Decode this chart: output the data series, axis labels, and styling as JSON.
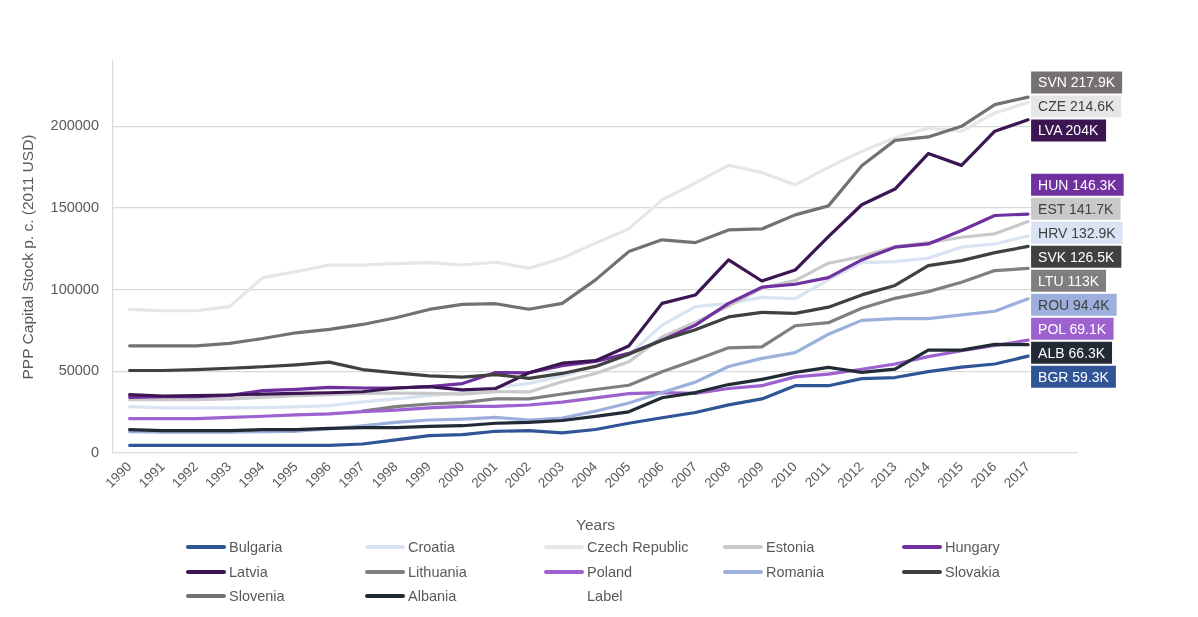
{
  "chart_data": {
    "type": "line",
    "xlabel": "Years",
    "ylabel": "PPP Capital Stock p. c. (2011 USD)",
    "categories": [
      "1990",
      "1991",
      "1992",
      "1993",
      "1994",
      "1995",
      "1996",
      "1997",
      "1998",
      "1999",
      "2000",
      "2001",
      "2002",
      "2003",
      "2004",
      "2005",
      "2006",
      "2007",
      "2008",
      "2009",
      "2010",
      "2011",
      "2012",
      "2013",
      "2014",
      "2015",
      "2016",
      "2017",
      null
    ],
    "ylim": [
      0,
      240000
    ],
    "yticks": [
      0,
      50000,
      100000,
      150000,
      200000
    ],
    "grid": "y",
    "legend": "bottom",
    "marker": "none",
    "line_style": "solid",
    "series": [
      {
        "name": "Bulgaria",
        "color": "#2f5597",
        "values": [
          4700,
          4700,
          4700,
          4700,
          4700,
          4700,
          4700,
          5500,
          8000,
          10600,
          11200,
          13300,
          13700,
          12300,
          14400,
          18200,
          21600,
          24800,
          29500,
          33100,
          41200,
          41200,
          45500,
          46200,
          49800,
          52600,
          54500,
          59300,
          null
        ],
        "value_labels": [
          null,
          null,
          null,
          null,
          null,
          null,
          null,
          null,
          null,
          null,
          null,
          null,
          null,
          null,
          null,
          null,
          null,
          null,
          null,
          null,
          null,
          null,
          null,
          null,
          null,
          null,
          null,
          "BGR 59.3K",
          null
        ]
      },
      {
        "name": "Croatia",
        "color": "#dae3f3",
        "values": [
          28400,
          27600,
          27600,
          27600,
          27800,
          28200,
          29000,
          31300,
          33100,
          35100,
          37100,
          40200,
          42600,
          47000,
          53000,
          60000,
          78300,
          89600,
          91600,
          95300,
          94500,
          106000,
          116600,
          117200,
          119300,
          126000,
          128000,
          132900,
          null
        ],
        "value_labels": [
          null,
          null,
          null,
          null,
          null,
          null,
          null,
          null,
          null,
          null,
          null,
          null,
          null,
          null,
          null,
          null,
          null,
          null,
          null,
          null,
          null,
          null,
          null,
          null,
          null,
          null,
          null,
          "HRV 132.9K",
          null
        ]
      },
      {
        "name": "Czech Republic",
        "color": "#e7e6e6",
        "values": [
          87900,
          87100,
          87100,
          89600,
          107400,
          111000,
          115100,
          115100,
          116000,
          116600,
          115100,
          116800,
          113100,
          119300,
          128500,
          137200,
          155000,
          165300,
          176100,
          171800,
          164200,
          174900,
          184700,
          192900,
          199000,
          196900,
          208200,
          214600,
          null
        ],
        "value_labels": [
          null,
          null,
          null,
          null,
          null,
          null,
          null,
          null,
          null,
          null,
          null,
          null,
          null,
          null,
          null,
          null,
          null,
          null,
          null,
          null,
          null,
          null,
          null,
          null,
          null,
          null,
          null,
          "CZE 214.6K",
          null
        ]
      },
      {
        "name": "Estonia",
        "color": "#c9c9c9",
        "values": [
          32700,
          32700,
          32700,
          33100,
          34100,
          35100,
          35700,
          36500,
          36700,
          36500,
          36100,
          37600,
          37400,
          43600,
          48700,
          55800,
          71000,
          80000,
          90000,
          101000,
          105500,
          116200,
          120300,
          126400,
          128800,
          132100,
          134200,
          141700,
          null
        ],
        "value_labels": [
          null,
          null,
          null,
          null,
          null,
          null,
          null,
          null,
          null,
          null,
          null,
          null,
          null,
          null,
          null,
          null,
          null,
          null,
          null,
          null,
          null,
          null,
          null,
          null,
          null,
          null,
          null,
          "EST 141.7K",
          null
        ]
      },
      {
        "name": "Hungary",
        "color": "#7030a0",
        "values": [
          34100,
          34500,
          34500,
          35300,
          38200,
          39000,
          40200,
          39800,
          39800,
          40600,
          42500,
          49300,
          49100,
          53500,
          56000,
          61000,
          69100,
          78300,
          91600,
          101500,
          103300,
          107400,
          118200,
          126000,
          128000,
          136200,
          145400,
          146300,
          null
        ],
        "value_labels": [
          null,
          null,
          null,
          null,
          null,
          null,
          null,
          null,
          null,
          null,
          null,
          null,
          null,
          null,
          null,
          null,
          null,
          null,
          null,
          null,
          null,
          null,
          null,
          null,
          null,
          null,
          null,
          "HUN 146.3K",
          null
        ]
      },
      {
        "name": "Latvia",
        "color": "#3b1652",
        "values": [
          35700,
          34900,
          35100,
          35500,
          36100,
          36500,
          36900,
          37500,
          39800,
          40600,
          38600,
          39500,
          49100,
          55000,
          56500,
          65500,
          91600,
          96700,
          118200,
          105300,
          112000,
          132500,
          152000,
          161600,
          183300,
          176100,
          197000,
          204000,
          null
        ],
        "value_labels": [
          null,
          null,
          null,
          null,
          null,
          null,
          null,
          null,
          null,
          null,
          null,
          null,
          null,
          null,
          null,
          null,
          null,
          null,
          null,
          null,
          null,
          null,
          null,
          null,
          null,
          null,
          null,
          "LVA 204K",
          null
        ]
      },
      {
        "name": "Lithuania",
        "color": "#7f7f7f",
        "values": [
          null,
          null,
          null,
          null,
          null,
          null,
          null,
          25600,
          28400,
          30000,
          30800,
          33100,
          33100,
          36100,
          38900,
          41500,
          49700,
          56900,
          64400,
          65000,
          77900,
          79800,
          88600,
          94700,
          98800,
          104500,
          111700,
          113000,
          null
        ],
        "value_labels": [
          null,
          null,
          null,
          null,
          null,
          null,
          null,
          null,
          null,
          null,
          null,
          null,
          null,
          null,
          null,
          null,
          null,
          null,
          null,
          null,
          null,
          null,
          null,
          null,
          null,
          null,
          null,
          "LTU 113K",
          null
        ]
      },
      {
        "name": "Poland",
        "color": "#9e62d0",
        "values": [
          21000,
          21000,
          21000,
          21800,
          22500,
          23300,
          23900,
          25300,
          26300,
          27600,
          28600,
          28600,
          29400,
          31200,
          33800,
          36300,
          37000,
          36500,
          39500,
          41200,
          46600,
          48300,
          51300,
          54500,
          59000,
          62600,
          65800,
          69100,
          null
        ],
        "value_labels": [
          null,
          null,
          null,
          null,
          null,
          null,
          null,
          null,
          null,
          null,
          null,
          null,
          null,
          null,
          null,
          null,
          null,
          null,
          null,
          null,
          null,
          null,
          null,
          null,
          null,
          null,
          null,
          "POL 69.1K",
          null
        ]
      },
      {
        "name": "Romania",
        "color": "#9dafdc",
        "values": [
          13100,
          12700,
          12700,
          12700,
          13100,
          13300,
          14700,
          16700,
          18800,
          20200,
          20800,
          21800,
          20200,
          21400,
          25600,
          30600,
          37000,
          43400,
          53000,
          57900,
          61500,
          72700,
          81200,
          82300,
          82300,
          84600,
          86800,
          94400,
          null
        ],
        "value_labels": [
          null,
          null,
          null,
          null,
          null,
          null,
          null,
          null,
          null,
          null,
          null,
          null,
          null,
          null,
          null,
          null,
          null,
          null,
          null,
          null,
          null,
          null,
          null,
          null,
          null,
          null,
          null,
          "ROU 94.4K",
          null
        ]
      },
      {
        "name": "Slovakia",
        "color": "#404040",
        "values": [
          50500,
          50500,
          51100,
          51900,
          52800,
          54000,
          55600,
          51100,
          49100,
          47200,
          46400,
          48000,
          45700,
          48700,
          53000,
          60500,
          69000,
          75400,
          83300,
          86100,
          85500,
          89300,
          96800,
          102600,
          114700,
          117800,
          122700,
          126500,
          null
        ],
        "value_labels": [
          null,
          null,
          null,
          null,
          null,
          null,
          null,
          null,
          null,
          null,
          null,
          null,
          null,
          null,
          null,
          null,
          null,
          null,
          null,
          null,
          null,
          null,
          null,
          null,
          null,
          null,
          null,
          "SVK 126.5K",
          null
        ]
      },
      {
        "name": "Slovenia",
        "color": "#767171",
        "values": [
          65600,
          65600,
          65600,
          67100,
          70100,
          73600,
          75700,
          78700,
          82800,
          87900,
          91000,
          91400,
          88000,
          91600,
          106000,
          123300,
          130500,
          128800,
          136600,
          137200,
          145800,
          151300,
          175900,
          191400,
          193500,
          200000,
          213300,
          217900,
          null
        ],
        "value_labels": [
          null,
          null,
          null,
          null,
          null,
          null,
          null,
          null,
          null,
          null,
          null,
          null,
          null,
          null,
          null,
          null,
          null,
          null,
          null,
          null,
          null,
          null,
          null,
          null,
          null,
          null,
          null,
          "SVN 217.9K",
          null
        ]
      },
      {
        "name": "Albania",
        "color": "#222a35",
        "values": [
          14300,
          13700,
          13700,
          13700,
          14300,
          14300,
          15100,
          15500,
          15500,
          16300,
          16700,
          18200,
          18800,
          19900,
          22400,
          25200,
          33800,
          37000,
          41900,
          45100,
          49400,
          52400,
          49400,
          51300,
          63000,
          63000,
          66500,
          66300,
          null
        ],
        "value_labels": [
          null,
          null,
          null,
          null,
          null,
          null,
          null,
          null,
          null,
          null,
          null,
          null,
          null,
          null,
          null,
          null,
          null,
          null,
          null,
          null,
          null,
          null,
          null,
          null,
          null,
          null,
          null,
          "ALB 66.3K",
          null
        ]
      },
      {
        "name": "Label",
        "values": [
          null,
          null,
          null,
          null,
          null,
          null,
          null,
          null,
          null,
          null,
          null,
          null,
          null,
          null,
          null,
          null,
          null,
          null,
          null,
          null,
          null,
          null,
          null,
          null,
          null,
          null,
          null,
          null,
          null
        ]
      }
    ]
  }
}
